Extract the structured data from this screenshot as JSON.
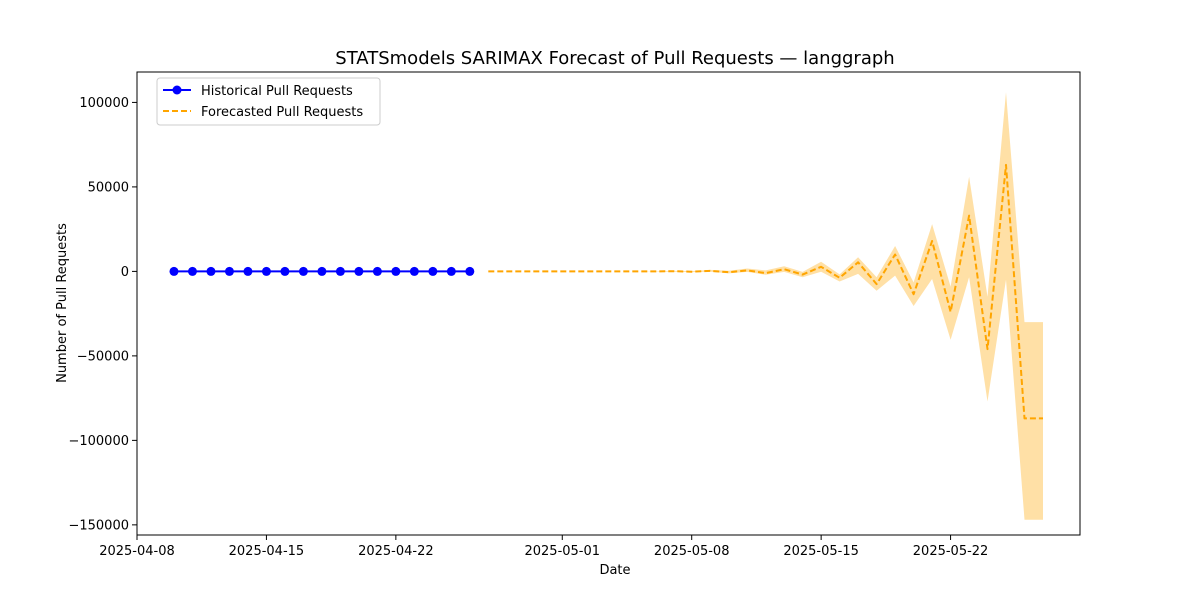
{
  "chart_data": {
    "type": "line",
    "title": "STATSmodels SARIMAX Forecast of Pull Requests — langgraph",
    "xlabel": "Date",
    "ylabel": "Number of Pull Requests",
    "x_axis_type": "date",
    "xlim": [
      "2025-04-08",
      "2025-05-29"
    ],
    "ylim": [
      -156000,
      118000
    ],
    "x_ticks": [
      "2025-04-08",
      "2025-04-15",
      "2025-04-22",
      "2025-05-01",
      "2025-05-08",
      "2025-05-15",
      "2025-05-22"
    ],
    "y_ticks": [
      100000,
      50000,
      0,
      -50000,
      -100000,
      -150000
    ],
    "grid": false,
    "legend_position": "top-left",
    "series": [
      {
        "name": "Historical Pull Requests",
        "color": "#0000ff",
        "style": "solid-with-markers",
        "x": [
          "2025-04-10",
          "2025-04-11",
          "2025-04-12",
          "2025-04-13",
          "2025-04-14",
          "2025-04-15",
          "2025-04-16",
          "2025-04-17",
          "2025-04-18",
          "2025-04-19",
          "2025-04-20",
          "2025-04-21",
          "2025-04-22",
          "2025-04-23",
          "2025-04-24",
          "2025-04-25",
          "2025-04-26"
        ],
        "y": [
          0,
          0,
          0,
          0,
          0,
          0,
          0,
          0,
          0,
          0,
          0,
          0,
          0,
          0,
          0,
          0,
          0
        ]
      },
      {
        "name": "Forecasted Pull Requests",
        "color": "#ffa500",
        "style": "dashed",
        "x": [
          "2025-04-27",
          "2025-04-28",
          "2025-04-29",
          "2025-04-30",
          "2025-05-01",
          "2025-05-02",
          "2025-05-03",
          "2025-05-04",
          "2025-05-05",
          "2025-05-06",
          "2025-05-07",
          "2025-05-08",
          "2025-05-09",
          "2025-05-10",
          "2025-05-11",
          "2025-05-12",
          "2025-05-13",
          "2025-05-14",
          "2025-05-15",
          "2025-05-16",
          "2025-05-17",
          "2025-05-18",
          "2025-05-19",
          "2025-05-20",
          "2025-05-21",
          "2025-05-22",
          "2025-05-23",
          "2025-05-24",
          "2025-05-25",
          "2025-05-26",
          "2025-05-27"
        ],
        "y": [
          0,
          0,
          0,
          0,
          0,
          0,
          0,
          0,
          0,
          0,
          100,
          -200,
          300,
          -500,
          600,
          -1000,
          1300,
          -1900,
          2700,
          -3800,
          5400,
          -7500,
          10000,
          -13500,
          18000,
          -24000,
          33000,
          -46000,
          63000,
          -87000,
          -87000
        ],
        "lower": [
          0,
          0,
          0,
          0,
          0,
          0,
          0,
          0,
          0,
          -100,
          -200,
          -400,
          -200,
          -1200,
          -300,
          -2000,
          -300,
          -3500,
          -200,
          -6000,
          -1500,
          -11500,
          -2500,
          -20500,
          -4500,
          -40500,
          -3500,
          -77000,
          -5000,
          -147000,
          -147000
        ],
        "upper": [
          0,
          0,
          0,
          0,
          0,
          0,
          0,
          0,
          0,
          100,
          300,
          200,
          900,
          400,
          1700,
          600,
          3100,
          -300,
          5700,
          -1800,
          8400,
          -3500,
          15000,
          -6500,
          28000,
          -9000,
          56000,
          -15000,
          106000,
          -30000,
          -30000
        ]
      }
    ]
  }
}
